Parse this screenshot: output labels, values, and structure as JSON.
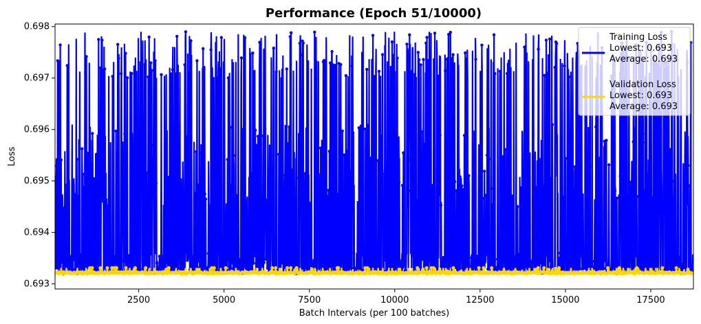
{
  "chart_data": {
    "type": "line",
    "title": "Performance (Epoch 51/10000)",
    "xlabel": "Batch Intervals (per 100 batches)",
    "ylabel": "Loss",
    "xlim": [
      50,
      18750
    ],
    "ylim": [
      0.6929,
      0.69805
    ],
    "x_ticks": [
      2500,
      5000,
      7500,
      10000,
      12500,
      15000,
      17500
    ],
    "y_ticks": [
      0.693,
      0.694,
      0.695,
      0.696,
      0.697,
      0.698
    ],
    "grid": false,
    "legend_position": "top-right",
    "series": [
      {
        "name": "Training Loss",
        "color": "#0000ff",
        "marker": "circle",
        "summary": [
          "Lowest: 0.693",
          "Average: 0.693"
        ],
        "x_range": [
          50,
          18750
        ],
        "min": 0.6932,
        "max": 0.6979,
        "note_values": [
          0.6932,
          0.6934,
          0.6941,
          0.6945,
          0.6951,
          0.6968,
          0.697,
          0.6974,
          0.6979
        ]
      },
      {
        "name": "Validation Loss",
        "color": "#ffd700",
        "marker": "circle",
        "summary": [
          "Lowest: 0.693",
          "Average: 0.693"
        ],
        "x_range": [
          50,
          18750
        ],
        "min": 0.6932,
        "max": 0.6933
      }
    ]
  }
}
